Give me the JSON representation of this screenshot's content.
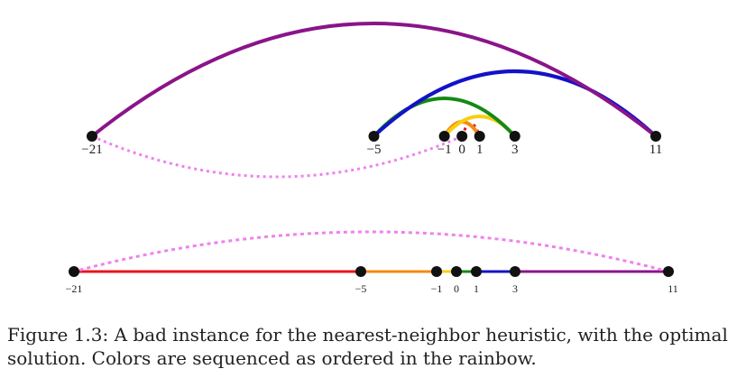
{
  "diagram": {
    "colors": {
      "red": "#e8141c",
      "orange": "#f58a0e",
      "yellow": "#f7cf12",
      "green": "#138a13",
      "blue": "#1212c8",
      "purple": "#8a148a",
      "violet": "#ee82ee",
      "node": "#111111"
    },
    "top_diagram": {
      "points": [
        {
          "value": -21,
          "label": "−21"
        },
        {
          "value": -5,
          "label": "−5"
        },
        {
          "value": -1,
          "label": "−1"
        },
        {
          "value": 0,
          "label": "0"
        },
        {
          "value": 1,
          "label": "1"
        },
        {
          "value": 3,
          "label": "3"
        },
        {
          "value": 11,
          "label": "11"
        }
      ],
      "tour_edges": [
        {
          "from": 0,
          "to": 1,
          "color": "red",
          "style": "dotted"
        },
        {
          "from": 1,
          "to": -1,
          "color": "orange",
          "style": "solid"
        },
        {
          "from": -1,
          "to": 3,
          "color": "yellow",
          "style": "solid"
        },
        {
          "from": 3,
          "to": -5,
          "color": "green",
          "style": "solid"
        },
        {
          "from": -5,
          "to": 11,
          "color": "blue",
          "style": "solid"
        },
        {
          "from": 11,
          "to": -21,
          "color": "purple",
          "style": "solid"
        },
        {
          "from": -21,
          "to": 0,
          "color": "violet",
          "style": "dotted"
        }
      ]
    },
    "bottom_diagram": {
      "points": [
        {
          "value": -21,
          "label": "−21"
        },
        {
          "value": -5,
          "label": "−5"
        },
        {
          "value": -1,
          "label": "−1"
        },
        {
          "value": 0,
          "label": "0"
        },
        {
          "value": 1,
          "label": "1"
        },
        {
          "value": 3,
          "label": "3"
        },
        {
          "value": 11,
          "label": "11"
        }
      ],
      "tour_edges": [
        {
          "from": -21,
          "to": -5,
          "color": "red",
          "style": "solid"
        },
        {
          "from": -5,
          "to": -1,
          "color": "orange",
          "style": "solid"
        },
        {
          "from": -1,
          "to": 0,
          "color": "yellow",
          "style": "solid"
        },
        {
          "from": 0,
          "to": 1,
          "color": "green",
          "style": "solid"
        },
        {
          "from": 1,
          "to": 3,
          "color": "blue",
          "style": "solid"
        },
        {
          "from": 3,
          "to": 11,
          "color": "purple",
          "style": "solid"
        },
        {
          "from": 11,
          "to": -21,
          "color": "violet",
          "style": "dotted"
        }
      ]
    }
  },
  "caption": {
    "line1": "Figure 1.3:  A bad instance for the nearest-neighbor heuristic, with the optimal",
    "line2": "solution.  Colors are sequenced as ordered in the rainbow."
  }
}
